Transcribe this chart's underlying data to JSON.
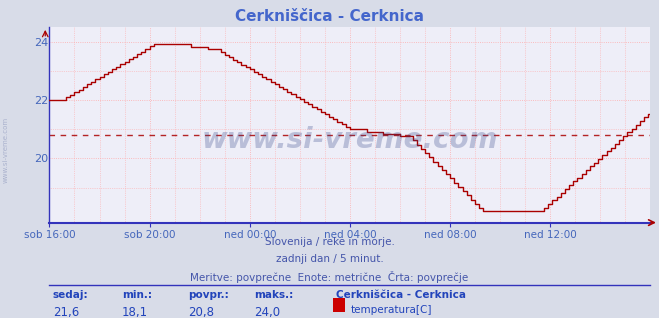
{
  "title": "Cerkniščica - Cerknica",
  "title_color": "#4466cc",
  "bg_color": "#d8dce8",
  "plot_bg_color": "#eeeef8",
  "grid_color": "#ffaaaa",
  "line_color": "#aa0000",
  "avg_value": 20.8,
  "ylim_min": 17.8,
  "ylim_max": 24.5,
  "yticks": [
    20,
    22,
    24
  ],
  "tick_color": "#4466bb",
  "watermark_text": "www.si-vreme.com",
  "watermark_color": "#334488",
  "watermark_alpha": 0.28,
  "subtitle1": "Slovenija / reke in morje.",
  "subtitle2": "zadnji dan / 5 minut.",
  "subtitle3": "Meritve: povprečne  Enote: metrične  Črta: povprečje",
  "subtitle_color": "#4455aa",
  "footer_label_color": "#2244bb",
  "footer_value_color": "#2244bb",
  "legend_title": "Cerkniščica - Cerknica",
  "legend_series": "temperatura[C]",
  "legend_color": "#cc0000",
  "x_labels": [
    "sob 16:00",
    "sob 20:00",
    "ned 00:00",
    "ned 04:00",
    "ned 08:00",
    "ned 12:00"
  ],
  "axis_color": "#3333bb",
  "arrow_color": "#aa0000",
  "num_points": 289
}
